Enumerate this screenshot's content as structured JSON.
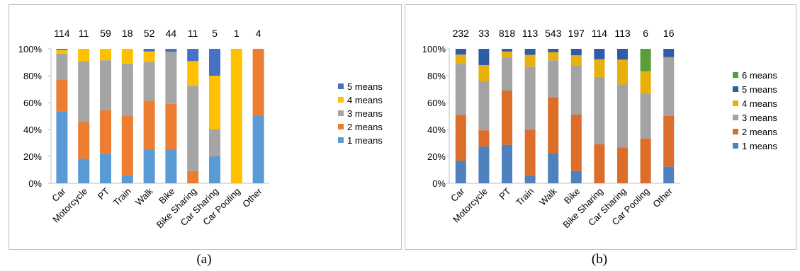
{
  "captions": {
    "a": "(a)",
    "b": "(b)"
  },
  "chart_data": [
    {
      "type": "bar",
      "stacked": "percent",
      "panel": "(a)",
      "categories": [
        "Car",
        "Motorcycle",
        "PT",
        "Train",
        "Walk",
        "Bike",
        "Bike Sharing",
        "Car Sharing",
        "Car Pooling",
        "Other"
      ],
      "totals": [
        "114",
        "11",
        "59",
        "18",
        "52",
        "44",
        "11",
        "5",
        "1",
        "4"
      ],
      "y_ticks": [
        "0%",
        "20%",
        "40%",
        "60%",
        "80%",
        "100%"
      ],
      "ylim": [
        0,
        100
      ],
      "legend_position": "right",
      "series": [
        {
          "name": "1 means",
          "color": "#5b9bd5",
          "values": [
            53.5,
            18.2,
            22.0,
            5.6,
            25.0,
            25.0,
            0,
            20,
            0,
            50
          ]
        },
        {
          "name": "2 means",
          "color": "#ed7d31",
          "values": [
            23.7,
            27.3,
            32.2,
            44.4,
            36.5,
            34.1,
            9.1,
            0,
            0,
            50
          ]
        },
        {
          "name": "3 means",
          "color": "#a5a5a5",
          "values": [
            19.3,
            45.4,
            37.3,
            38.9,
            28.8,
            38.6,
            63.6,
            20,
            0,
            0
          ]
        },
        {
          "name": "4 means",
          "color": "#ffc000",
          "values": [
            2.6,
            9.1,
            8.5,
            11.1,
            7.7,
            0,
            18.2,
            40,
            100,
            0
          ]
        },
        {
          "name": "5 means",
          "color": "#4472c4",
          "values": [
            0.9,
            0,
            0,
            0,
            2.0,
            2.3,
            9.1,
            20,
            0,
            0
          ]
        }
      ]
    },
    {
      "type": "bar",
      "stacked": "percent",
      "panel": "(b)",
      "categories": [
        "Car",
        "Motorcycle",
        "PT",
        "Train",
        "Walk",
        "Bike",
        "Bike Sharing",
        "Car Sharing",
        "Car Pooling",
        "Other"
      ],
      "totals": [
        "232",
        "33",
        "818",
        "113",
        "543",
        "197",
        "114",
        "113",
        "6",
        "16"
      ],
      "y_ticks": [
        "0%",
        "20%",
        "40%",
        "60%",
        "80%",
        "100%"
      ],
      "ylim": [
        0,
        100
      ],
      "legend_position": "right",
      "series": [
        {
          "name": "1 means",
          "color": "#4e81bd",
          "values": [
            16.8,
            27.3,
            28.6,
            5.3,
            22.1,
            9.1,
            0,
            0,
            0,
            12.5
          ]
        },
        {
          "name": "2 means",
          "color": "#dc6e2a",
          "values": [
            34.1,
            12.1,
            40.3,
            34.5,
            42.0,
            42.0,
            29.0,
            26.6,
            33.3,
            37.5
          ]
        },
        {
          "name": "3 means",
          "color": "#a3a3a3",
          "values": [
            37.9,
            36.4,
            24.5,
            46.9,
            27.3,
            36.5,
            50.0,
            46.8,
            33.3,
            43.8
          ]
        },
        {
          "name": "4 means",
          "color": "#e8b00c",
          "values": [
            6.9,
            12.1,
            4.6,
            8.8,
            6.1,
            7.6,
            13.2,
            18.6,
            16.7,
            0
          ]
        },
        {
          "name": "5 means",
          "color": "#2f5ca6",
          "values": [
            4.3,
            12.1,
            2.0,
            4.5,
            2.5,
            4.8,
            7.8,
            8.0,
            0,
            6.2
          ]
        },
        {
          "name": "6 means",
          "color": "#5a9e3c",
          "values": [
            0,
            0,
            0,
            0,
            0,
            0,
            0,
            0,
            16.7,
            0
          ]
        }
      ]
    }
  ]
}
